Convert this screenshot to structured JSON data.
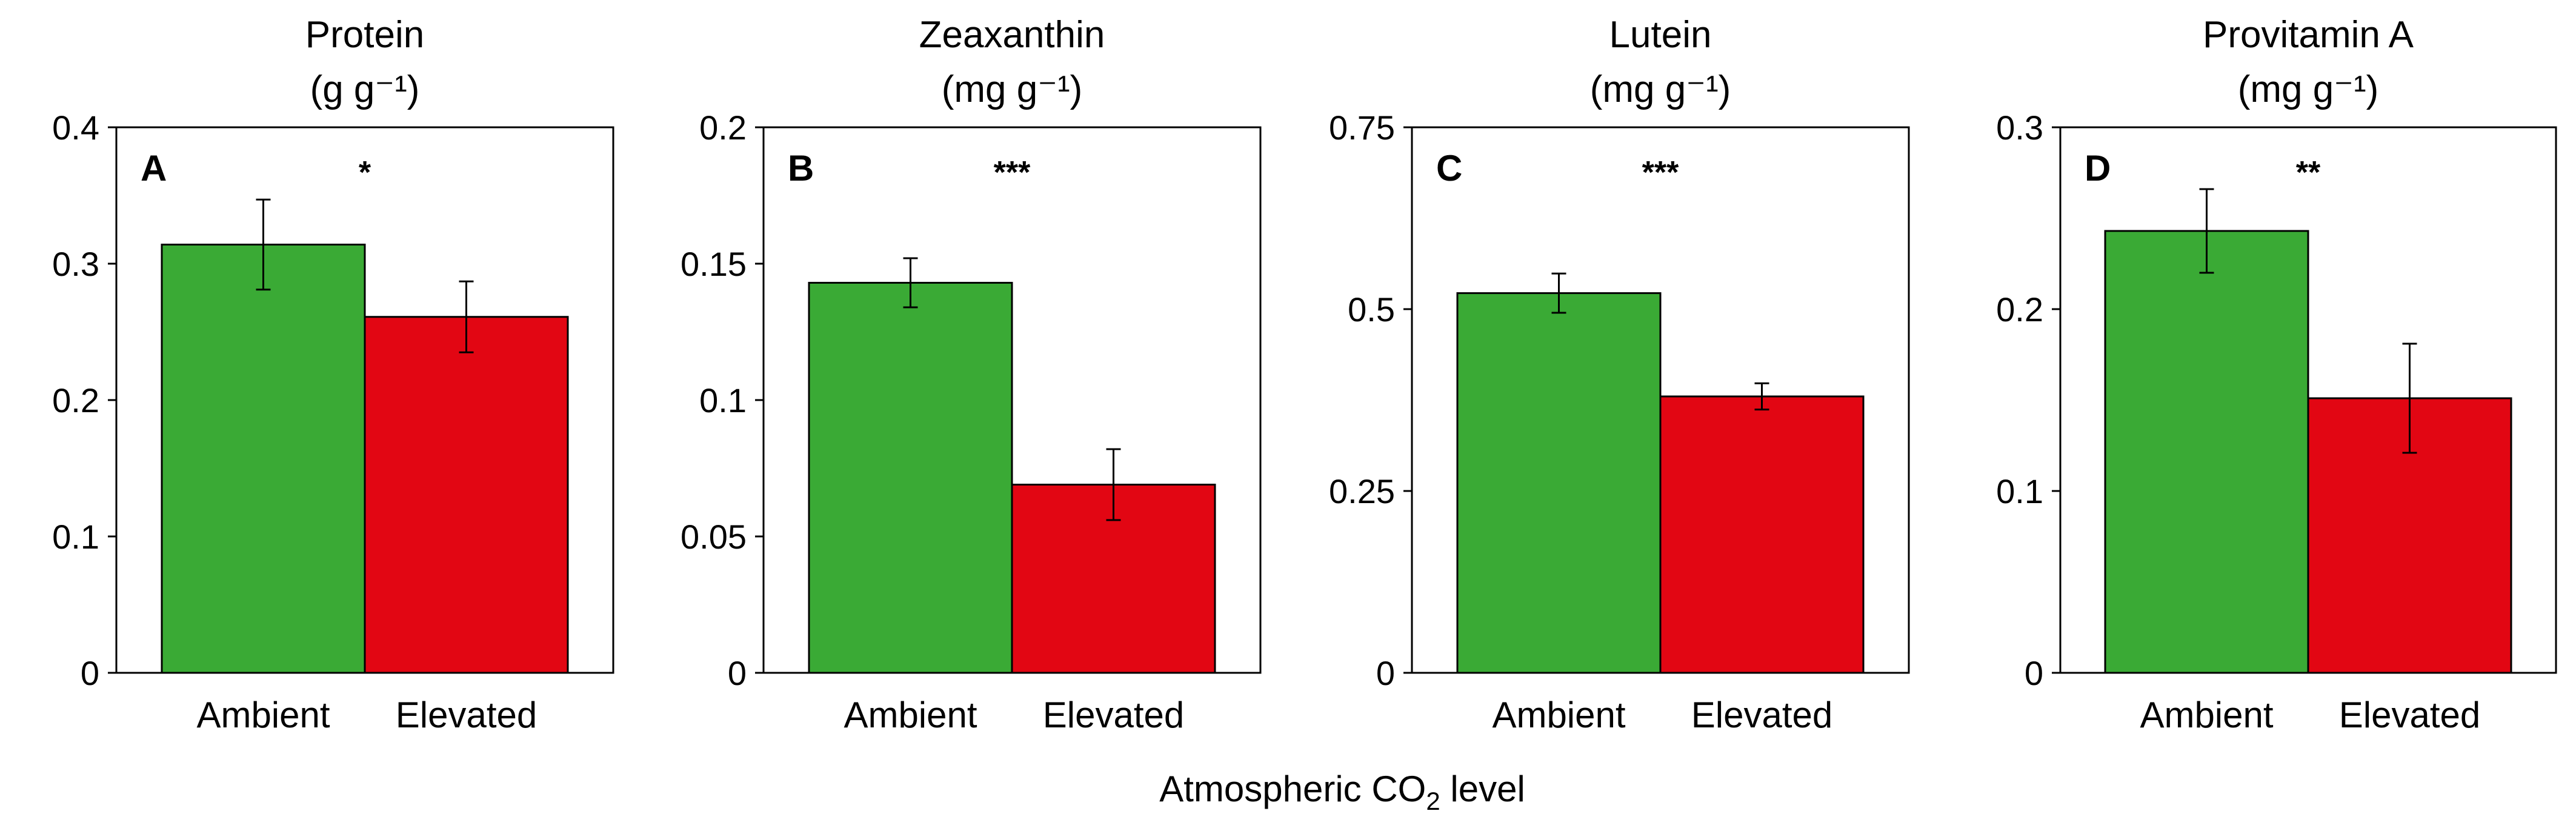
{
  "chart_data": [
    {
      "type": "bar",
      "panel": "A",
      "title": "Protein",
      "unit": "(g g⁻¹)",
      "categories": [
        "Ambient",
        "Elevated"
      ],
      "values": [
        0.314,
        0.261
      ],
      "errors": [
        0.033,
        0.026
      ],
      "colors": [
        "#3aaa35",
        "#e20613"
      ],
      "ylim": [
        0,
        0.4
      ],
      "yticks": [
        0,
        0.1,
        0.2,
        0.3,
        0.4
      ],
      "ytick_labels": [
        "0",
        "0.1",
        "0.2",
        "0.3",
        "0.4"
      ],
      "significance": "*"
    },
    {
      "type": "bar",
      "panel": "B",
      "title": "Zeaxanthin",
      "unit": "(mg g⁻¹)",
      "categories": [
        "Ambient",
        "Elevated"
      ],
      "values": [
        0.143,
        0.069
      ],
      "errors": [
        0.009,
        0.013
      ],
      "colors": [
        "#3aaa35",
        "#e20613"
      ],
      "ylim": [
        0,
        0.2
      ],
      "yticks": [
        0,
        0.05,
        0.1,
        0.15,
        0.2
      ],
      "ytick_labels": [
        "0",
        "0.05",
        "0.1",
        "0.15",
        "0.2"
      ],
      "significance": "***"
    },
    {
      "type": "bar",
      "panel": "C",
      "title": "Lutein",
      "unit": "(mg g⁻¹)",
      "categories": [
        "Ambient",
        "Elevated"
      ],
      "values": [
        0.522,
        0.38
      ],
      "errors": [
        0.027,
        0.018
      ],
      "colors": [
        "#3aaa35",
        "#e20613"
      ],
      "ylim": [
        0,
        0.75
      ],
      "yticks": [
        0,
        0.25,
        0.5,
        0.75
      ],
      "ytick_labels": [
        "0",
        "0.25",
        "0.5",
        "0.75"
      ],
      "significance": "***"
    },
    {
      "type": "bar",
      "panel": "D",
      "title": "Provitamin A",
      "unit": "(mg g⁻¹)",
      "categories": [
        "Ambient",
        "Elevated"
      ],
      "values": [
        0.243,
        0.151
      ],
      "errors": [
        0.023,
        0.03
      ],
      "colors": [
        "#3aaa35",
        "#e20613"
      ],
      "ylim": [
        0,
        0.3
      ],
      "yticks": [
        0,
        0.1,
        0.2,
        0.3
      ],
      "ytick_labels": [
        "0",
        "0.1",
        "0.2",
        "0.3"
      ],
      "significance": "**"
    }
  ],
  "xlabel": {
    "prefix": "Atmospheric CO",
    "subscript": "2",
    "suffix": " level"
  }
}
